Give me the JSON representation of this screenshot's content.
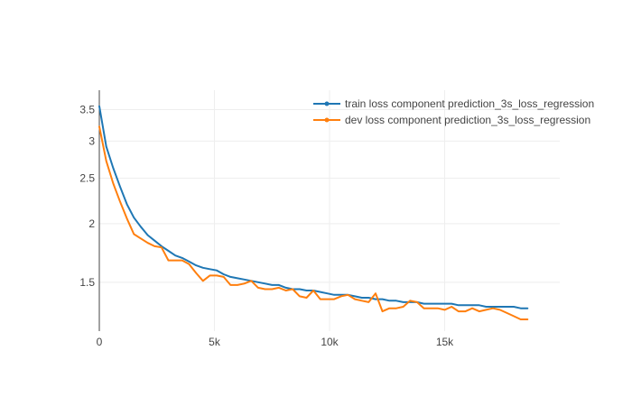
{
  "chart_data": {
    "type": "line",
    "xlim": [
      0,
      20000
    ],
    "ylim": [
      1.18,
      3.85
    ],
    "y_scale": "log",
    "grid": true,
    "legend_placement": "top-right",
    "x_ticks": [
      {
        "value": 0,
        "label": "0"
      },
      {
        "value": 5000,
        "label": "5k"
      },
      {
        "value": 10000,
        "label": "10k"
      },
      {
        "value": 15000,
        "label": "15k"
      }
    ],
    "y_ticks": [
      {
        "value": 1.5,
        "label": "1.5"
      },
      {
        "value": 2,
        "label": "2"
      },
      {
        "value": 2.5,
        "label": "2.5"
      },
      {
        "value": 3,
        "label": "3"
      },
      {
        "value": 3.5,
        "label": "3.5"
      }
    ],
    "series": [
      {
        "name": "train loss component prediction_3s_loss_regression",
        "color": "#1f77b4",
        "x": [
          0,
          300,
          600,
          900,
          1200,
          1500,
          1800,
          2100,
          2400,
          2700,
          3000,
          3300,
          3600,
          3900,
          4200,
          4500,
          4800,
          5100,
          5400,
          5700,
          6000,
          6300,
          6600,
          6900,
          7200,
          7500,
          7800,
          8100,
          8400,
          8700,
          9000,
          9300,
          9600,
          9900,
          10200,
          10500,
          10800,
          11100,
          11400,
          11700,
          12000,
          12300,
          12600,
          12900,
          13200,
          13500,
          13800,
          14100,
          14400,
          14700,
          15000,
          15300,
          15600,
          15900,
          16200,
          16500,
          16800,
          17100,
          17400,
          17700,
          18000,
          18300,
          18600
        ],
        "y": [
          3.56,
          2.92,
          2.63,
          2.4,
          2.2,
          2.06,
          1.97,
          1.89,
          1.84,
          1.79,
          1.75,
          1.71,
          1.69,
          1.66,
          1.63,
          1.61,
          1.6,
          1.59,
          1.56,
          1.54,
          1.53,
          1.52,
          1.51,
          1.5,
          1.49,
          1.48,
          1.48,
          1.46,
          1.45,
          1.45,
          1.44,
          1.44,
          1.43,
          1.42,
          1.41,
          1.41,
          1.41,
          1.4,
          1.39,
          1.39,
          1.38,
          1.38,
          1.37,
          1.37,
          1.36,
          1.36,
          1.36,
          1.35,
          1.35,
          1.35,
          1.35,
          1.35,
          1.34,
          1.34,
          1.34,
          1.34,
          1.33,
          1.33,
          1.33,
          1.33,
          1.33,
          1.32,
          1.32
        ]
      },
      {
        "name": "dev loss component prediction_3s_loss_regression",
        "color": "#ff7f0e",
        "x": [
          0,
          300,
          600,
          900,
          1200,
          1500,
          1800,
          2100,
          2400,
          2700,
          3000,
          3300,
          3600,
          3900,
          4200,
          4500,
          4800,
          5100,
          5400,
          5700,
          6000,
          6300,
          6600,
          6900,
          7200,
          7500,
          7800,
          8100,
          8400,
          8700,
          9000,
          9300,
          9600,
          9900,
          10200,
          10500,
          10800,
          11100,
          11400,
          11700,
          12000,
          12300,
          12600,
          12900,
          13200,
          13500,
          13800,
          14100,
          14400,
          14700,
          15000,
          15300,
          15600,
          15900,
          16200,
          16500,
          16800,
          17100,
          17400,
          17700,
          18000,
          18300,
          18600
        ],
        "y": [
          3.22,
          2.72,
          2.44,
          2.23,
          2.05,
          1.9,
          1.86,
          1.82,
          1.79,
          1.78,
          1.67,
          1.67,
          1.67,
          1.64,
          1.57,
          1.51,
          1.55,
          1.55,
          1.54,
          1.48,
          1.48,
          1.49,
          1.51,
          1.46,
          1.45,
          1.45,
          1.46,
          1.44,
          1.45,
          1.4,
          1.39,
          1.44,
          1.38,
          1.38,
          1.38,
          1.4,
          1.41,
          1.38,
          1.37,
          1.36,
          1.42,
          1.3,
          1.32,
          1.32,
          1.33,
          1.37,
          1.36,
          1.32,
          1.32,
          1.32,
          1.31,
          1.33,
          1.3,
          1.3,
          1.32,
          1.3,
          1.31,
          1.32,
          1.31,
          1.29,
          1.27,
          1.25,
          1.25
        ]
      }
    ]
  }
}
